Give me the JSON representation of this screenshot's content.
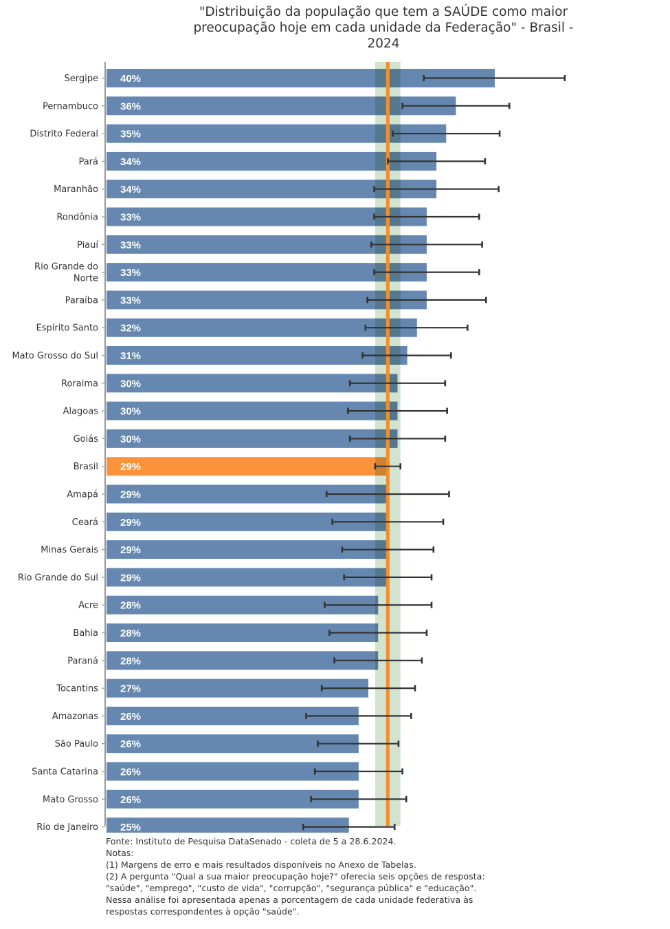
{
  "chart_data": {
    "type": "bar",
    "orientation": "horizontal",
    "title": "\"Distribuição da população que tem a SAÚDE como maior preocupação hoje em cada unidade da Federação\" - Brasil - 2024",
    "xlabel": "",
    "ylabel": "",
    "xlim": [
      0,
      50
    ],
    "grid": false,
    "value_format": "{v}%",
    "colors": {
      "bar": "#6688b0",
      "highlight_bar": "#fb923c",
      "reference_line": "#f28e2b",
      "reference_band": "#b7d2b1",
      "error_bar": "#333333",
      "axis": "#999999"
    },
    "highlight_category": "Brasil",
    "reference": {
      "value": 29,
      "band": [
        27.7,
        30.3
      ],
      "label": "Brasil"
    },
    "categories": [
      "Sergipe",
      "Pernambuco",
      "Distrito Federal",
      "Pará",
      "Maranhão",
      "Rondônia",
      "Piauí",
      "Rio Grande do Norte",
      "Paraíba",
      "Espírito Santo",
      "Mato Grosso do Sul",
      "Roraima",
      "Alagoas",
      "Goiás",
      "Brasil",
      "Amapá",
      "Ceará",
      "Minas Gerais",
      "Rio Grande do Sul",
      "Acre",
      "Bahia",
      "Paraná",
      "Tocantins",
      "Amazonas",
      "São Paulo",
      "Santa Catarina",
      "Mato Grosso",
      "Rio de Janeiro"
    ],
    "category_display": [
      "Sergipe",
      "Pernambuco",
      "Distrito Federal",
      "Pará",
      "Maranhão",
      "Rondônia",
      "Piauí",
      "Rio Grande do|Norte",
      "Paraíba",
      "Espírito Santo",
      "Mato Grosso do Sul",
      "Roraima",
      "Alagoas",
      "Goiás",
      "Brasil",
      "Amapá",
      "Ceará",
      "Minas Gerais",
      "Rio Grande do Sul",
      "Acre",
      "Bahia",
      "Paraná",
      "Tocantins",
      "Amazonas",
      "São Paulo",
      "Santa Catarina",
      "Mato Grosso",
      "Rio de Janeiro"
    ],
    "values": [
      40,
      36,
      35,
      34,
      34,
      33,
      33,
      33,
      33,
      32,
      31,
      30,
      30,
      30,
      29,
      29,
      29,
      29,
      29,
      28,
      28,
      28,
      27,
      26,
      26,
      26,
      26,
      25
    ],
    "error_low": [
      32.7,
      30.5,
      29.5,
      29.0,
      27.6,
      27.6,
      27.3,
      27.6,
      26.9,
      26.7,
      26.4,
      25.1,
      24.9,
      25.1,
      27.7,
      22.7,
      23.3,
      24.3,
      24.5,
      22.5,
      23.0,
      23.5,
      22.2,
      20.6,
      21.8,
      21.5,
      21.1,
      20.3
    ],
    "error_high": [
      47.2,
      41.5,
      40.5,
      39.0,
      40.4,
      38.4,
      38.7,
      38.4,
      39.1,
      37.2,
      35.5,
      34.9,
      35.1,
      34.9,
      30.3,
      35.3,
      34.7,
      33.7,
      33.5,
      33.5,
      33.0,
      32.5,
      31.8,
      31.4,
      30.1,
      30.5,
      30.9,
      29.7
    ]
  },
  "footnotes": {
    "source": "Fonte: Instituto de Pesquisa DataSenado - coleta de 5 a 28.6.2024.",
    "notes_heading": "Notas:",
    "note1": "(1) Margens de erro e mais resultados disponíveis no Anexo de Tabelas.",
    "note2": "(2) A pergunta \"Qual a sua maior preocupação hoje?\" oferecia seis opções de resposta: \"saúde\", \"emprego\", \"custo de vida\", \"corrupção\", \"segurança pública\" e \"educação\". Nessa análise foi apresentada apenas a porcentagem de cada unidade federativa às respostas correspondentes à opção \"saúde\"."
  }
}
